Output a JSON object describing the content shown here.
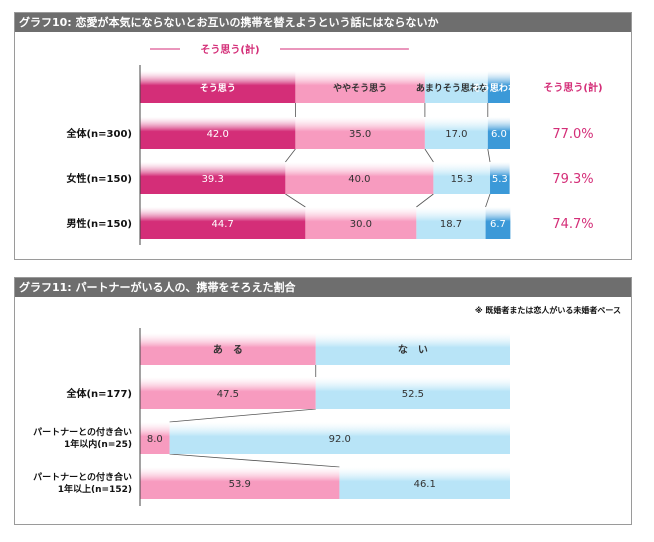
{
  "chart_data": [
    {
      "type": "bar",
      "title": "グラフ10: 恋愛が本気にならないとお互いの携帯を替えようという話にはならないか",
      "stacked": true,
      "group_label": "そう思う(計)",
      "summary_header": "そう思う(計)",
      "legend": [
        "そう思う",
        "ややそう思う",
        "あまりそう思わない",
        "そう思わない"
      ],
      "categories": [
        "全体(n=300)",
        "女性(n=150)",
        "男性(n=150)"
      ],
      "series": [
        {
          "name": "そう思う",
          "values": [
            42.0,
            39.3,
            44.7
          ]
        },
        {
          "name": "ややそう思う",
          "values": [
            35.0,
            40.0,
            30.0
          ]
        },
        {
          "name": "あまりそう思わない",
          "values": [
            17.0,
            15.3,
            18.7
          ]
        },
        {
          "name": "そう思わない",
          "values": [
            6.0,
            5.3,
            6.7
          ]
        }
      ],
      "value_labels": [
        [
          "42.0",
          "35.0",
          "17.0",
          "6.0"
        ],
        [
          "39.3",
          "40.0",
          "15.3",
          "5.3"
        ],
        [
          "44.7",
          "30.0",
          "18.7",
          "6.7"
        ]
      ],
      "summary_values": [
        "77.0%",
        "79.3%",
        "74.7%"
      ],
      "xlim": [
        0,
        100
      ],
      "colors": [
        "#d42e78",
        "#f79bbf",
        "#b8e4f7",
        "#3b99d8"
      ]
    },
    {
      "type": "bar",
      "title": "グラフ11: パートナーがいる人の、携帯をそろえた割合",
      "note": "※ 既婚者または恋人がいる未婚者ベース",
      "stacked": true,
      "legend": [
        "あ　る",
        "な　い"
      ],
      "categories": [
        {
          "line1": "全体(n=177)",
          "line2": ""
        },
        {
          "line1": "パートナーとの付き合い",
          "line2": "1年以内(n=25)"
        },
        {
          "line1": "パートナーとの付き合い",
          "line2": "1年以上(n=152)"
        }
      ],
      "series": [
        {
          "name": "あ　る",
          "values": [
            47.5,
            8.0,
            53.9
          ]
        },
        {
          "name": "な　い",
          "values": [
            52.5,
            92.0,
            46.1
          ]
        }
      ],
      "value_labels": [
        [
          "47.5",
          "52.5"
        ],
        [
          "8.0",
          "92.0"
        ],
        [
          "53.9",
          "46.1"
        ]
      ],
      "xlim": [
        0,
        100
      ],
      "colors": [
        "#f79bbf",
        "#b8e4f7"
      ]
    }
  ]
}
